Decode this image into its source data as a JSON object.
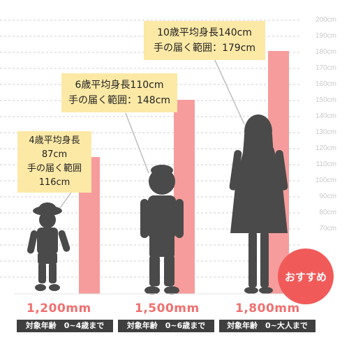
{
  "scale_ticks": [
    "200cm",
    "190cm",
    "180cm",
    "170cm",
    "160cm",
    "150cm",
    "140cm",
    "130cm",
    "120cm",
    "110cm",
    "100cm",
    "90cm",
    "80cm",
    "70cm"
  ],
  "colors": {
    "bar": "#f79c9c",
    "callout": "#fce9a6",
    "silhouette": "#4a4a4a",
    "accent": "#f0706f",
    "badge": "#f05b5a"
  },
  "products": [
    {
      "height_cm": 116,
      "callout": {
        "line1": "4歳平均身長",
        "line2": "87cm",
        "line3": "手の届く範囲",
        "line4": "116cm"
      },
      "size_label": "1,200mm",
      "age_label": "対象年齢　0~4歳まで"
    },
    {
      "height_cm": 148,
      "callout": {
        "line1": "6歳平均身長110cm",
        "line2": "手の届く範囲：148cm"
      },
      "size_label": "1,500mm",
      "age_label": "対象年齢　0~6歳まで"
    },
    {
      "height_cm": 179,
      "callout": {
        "line1": "10歳平均身長140cm",
        "line2": "手の届く範囲：179cm"
      },
      "size_label": "1,800mm",
      "age_label": "対象年齢　0~大人まで"
    }
  ],
  "badge": "おすすめ"
}
